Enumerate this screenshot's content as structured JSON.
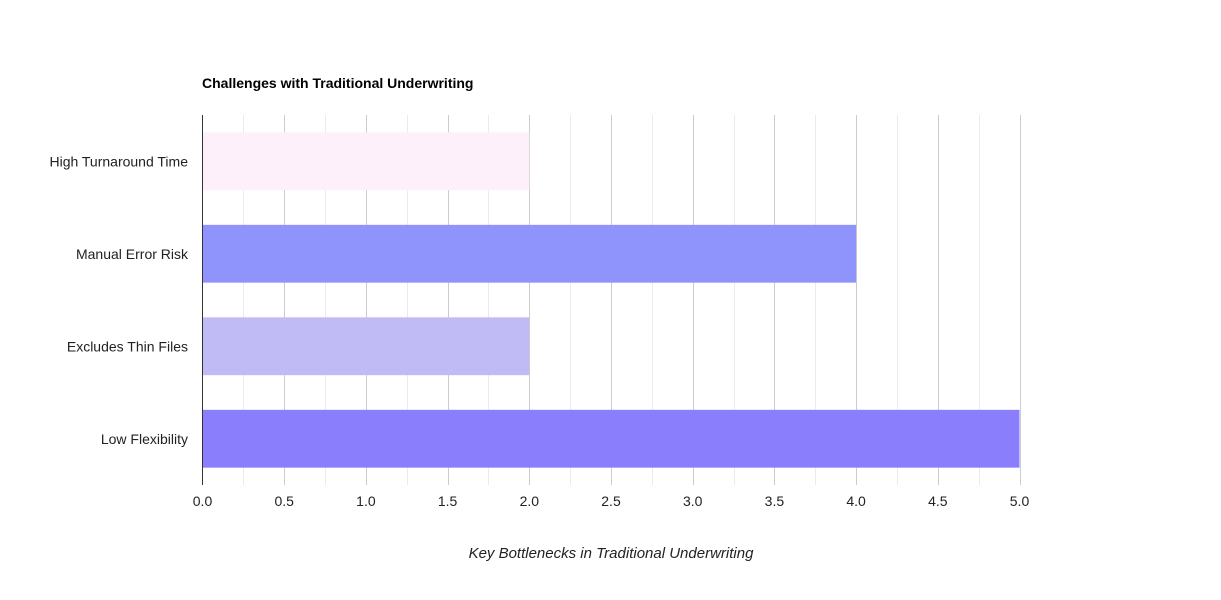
{
  "chart_data": {
    "type": "bar",
    "orientation": "horizontal",
    "title": "Challenges with Traditional Underwriting",
    "xlabel": "Key Bottlenecks in Traditional Underwriting",
    "ylabel": "",
    "categories": [
      "High Turnaround Time",
      "Manual Error Risk",
      "Excludes Thin Files",
      "Low Flexibility"
    ],
    "values": [
      2,
      4,
      2,
      5
    ],
    "bar_colors": [
      "#fdf0fb",
      "#8f94fd",
      "#c0bbf5",
      "#8a7efd"
    ],
    "xlim": [
      0,
      5
    ],
    "x_ticks": [
      "0.0",
      "0.5",
      "1.0",
      "1.5",
      "2.0",
      "2.5",
      "3.0",
      "3.5",
      "4.0",
      "4.5",
      "5.0"
    ],
    "grid": true,
    "legend": "none"
  }
}
